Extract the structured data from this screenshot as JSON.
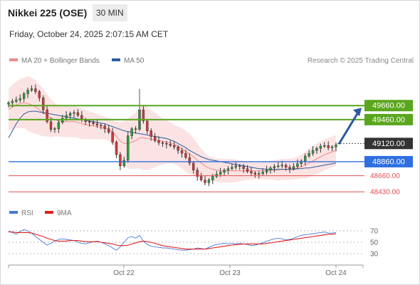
{
  "header": {
    "title": "Nikkei 225 (OSE)",
    "timeframe": "30 MIN",
    "datetime": "Friday, October 24, 2025 2:07:15 AM CET"
  },
  "legend": {
    "items": [
      {
        "label": "MA 20 + Bollinger Bands",
        "color": "#f08a8a"
      },
      {
        "label": "MA 50",
        "color": "#2c5b9e"
      }
    ],
    "credit": "Research © 2025 Trading Central"
  },
  "chart_data": [
    {
      "type": "line",
      "subtype": "candlestick-with-levels",
      "title": "Nikkei 225 (OSE)",
      "y_axis_side": "right",
      "ylim": [
        48300,
        50150
      ],
      "x_ticks": [
        "Oct 22",
        "Oct 23",
        "Oct 24"
      ],
      "levels": [
        {
          "label": "49660.00",
          "value": 49660,
          "color": "#5aa61e",
          "kind": "resistance"
        },
        {
          "label": "49460.00",
          "value": 49460,
          "color": "#5aa61e",
          "kind": "resistance"
        },
        {
          "label": "49120.00",
          "value": 49120,
          "color": "#333333",
          "kind": "last-price"
        },
        {
          "label": "48860.00",
          "value": 48860,
          "color": "#2f6fe0",
          "kind": "pivot"
        },
        {
          "label": "48660.00",
          "value": 48660,
          "color": "#e05050",
          "kind": "support"
        },
        {
          "label": "48430.00",
          "value": 48430,
          "color": "#e05050",
          "kind": "support"
        }
      ],
      "forecast_arrow": {
        "from": 49120,
        "to": 49660,
        "color": "#2c5b9e"
      },
      "price_path": [
        49700,
        49720,
        49740,
        49760,
        49830,
        49880,
        49900,
        49860,
        49770,
        49600,
        49430,
        49320,
        49330,
        49420,
        49480,
        49520,
        49550,
        49560,
        49520,
        49460,
        49430,
        49420,
        49400,
        49380,
        49370,
        49330,
        49280,
        49140,
        48960,
        48800,
        48880,
        49230,
        49330,
        49320,
        49600,
        49440,
        49300,
        49220,
        49160,
        49130,
        49120,
        49110,
        49090,
        49070,
        49020,
        48980,
        48920,
        48840,
        48740,
        48650,
        48600,
        48560,
        48600,
        48650,
        48680,
        48710,
        48740,
        48760,
        48780,
        48800,
        48790,
        48760,
        48720,
        48700,
        48680,
        48690,
        48710,
        48740,
        48770,
        48790,
        48800,
        48810,
        48780,
        48760,
        48790,
        48830,
        48870,
        48940,
        48980,
        49020,
        49050,
        49080,
        49090,
        49060,
        49070,
        49100
      ],
      "series": [
        {
          "name": "MA 20 + Bollinger Bands",
          "color": "#f08a8a",
          "ma": [
            49600,
            49640,
            49670,
            49690,
            49700,
            49690,
            49670,
            49640,
            49600,
            49560,
            49520,
            49480,
            49460,
            49440,
            49430,
            49430,
            49430,
            49430,
            49420,
            49400,
            49390,
            49380,
            49370,
            49360,
            49350,
            49340,
            49320,
            49280,
            49220,
            49150,
            49120,
            49120,
            49140,
            49160,
            49200,
            49200,
            49190,
            49180,
            49170,
            49160,
            49150,
            49140,
            49130,
            49110,
            49080,
            49050,
            49010,
            48970,
            48930,
            48880,
            48840,
            48800,
            48770,
            48750,
            48740,
            48730,
            48730,
            48730,
            48730,
            48730,
            48730,
            48730,
            48730,
            48730,
            48730,
            48730,
            48730,
            48730,
            48740,
            48740,
            48740,
            48750,
            48750,
            48750,
            48760,
            48770,
            48790,
            48810,
            48840,
            48870,
            48900,
            48930,
            48960,
            48980,
            49000,
            49020
          ],
          "upper": [
            49900,
            49960,
            50000,
            50040,
            50060,
            50080,
            50060,
            50020,
            49960,
            49900,
            49820,
            49750,
            49700,
            49660,
            49650,
            49650,
            49650,
            49650,
            49640,
            49620,
            49600,
            49580,
            49560,
            49540,
            49520,
            49500,
            49480,
            49450,
            49430,
            49420,
            49440,
            49480,
            49520,
            49560,
            49640,
            49660,
            49640,
            49600,
            49560,
            49520,
            49480,
            49450,
            49420,
            49390,
            49360,
            49340,
            49300,
            49260,
            49200,
            49120,
            49050,
            48980,
            48940,
            48920,
            48910,
            48900,
            48900,
            48900,
            48900,
            48890,
            48880,
            48870,
            48860,
            48860,
            48850,
            48850,
            48850,
            48860,
            48870,
            48880,
            48890,
            48900,
            48900,
            48900,
            48910,
            48930,
            48960,
            49000,
            49040,
            49080,
            49120,
            49150,
            49180,
            49200,
            49220,
            49240
          ],
          "lower": [
            49300,
            49320,
            49340,
            49340,
            49340,
            49300,
            49280,
            49260,
            49240,
            49220,
            49220,
            49210,
            49220,
            49220,
            49210,
            49210,
            49210,
            49210,
            49200,
            49180,
            49180,
            49180,
            49180,
            49180,
            49180,
            49180,
            49160,
            49110,
            49010,
            48880,
            48800,
            48760,
            48760,
            48760,
            48760,
            48740,
            48740,
            48760,
            48780,
            48800,
            48820,
            48830,
            48840,
            48830,
            48800,
            48760,
            48720,
            48680,
            48660,
            48640,
            48630,
            48620,
            48600,
            48580,
            48570,
            48560,
            48560,
            48560,
            48560,
            48570,
            48580,
            48590,
            48600,
            48600,
            48610,
            48610,
            48610,
            48600,
            48610,
            48600,
            48590,
            48600,
            48600,
            48600,
            48610,
            48610,
            48620,
            48620,
            48640,
            48660,
            48680,
            48710,
            48740,
            48760,
            48780,
            48800
          ]
        },
        {
          "name": "MA 50",
          "color": "#2c5b9e",
          "values": [
            49200,
            49300,
            49400,
            49480,
            49540,
            49570,
            49580,
            49580,
            49570,
            49560,
            49550,
            49540,
            49530,
            49520,
            49510,
            49500,
            49490,
            49480,
            49470,
            49460,
            49450,
            49440,
            49430,
            49420,
            49410,
            49400,
            49380,
            49360,
            49340,
            49320,
            49300,
            49290,
            49280,
            49270,
            49260,
            49250,
            49240,
            49230,
            49220,
            49210,
            49200,
            49190,
            49170,
            49150,
            49120,
            49090,
            49060,
            49020,
            48990,
            48960,
            48930,
            48910,
            48890,
            48880,
            48870,
            48860,
            48850,
            48840,
            48830,
            48820,
            48810,
            48800,
            48790,
            48780,
            48770,
            48760,
            48760,
            48750,
            48750,
            48750,
            48750,
            48750,
            48750,
            48750,
            48750,
            48760,
            48760,
            48770,
            48770,
            48780,
            48790,
            48800,
            48810,
            48820,
            48830,
            48840
          ]
        }
      ]
    },
    {
      "type": "line",
      "title": "",
      "ylim": [
        15,
        85
      ],
      "y_ticks": [
        70,
        50,
        30
      ],
      "x_ticks": [
        "Oct 22",
        "Oct 23",
        "Oct 24"
      ],
      "series": [
        {
          "name": "RSI",
          "color": "#4a78d8",
          "values": [
            70,
            67,
            64,
            69,
            72,
            70,
            66,
            60,
            55,
            50,
            45,
            48,
            52,
            55,
            56,
            55,
            54,
            53,
            50,
            48,
            47,
            49,
            51,
            52,
            50,
            47,
            44,
            40,
            36,
            42,
            50,
            58,
            60,
            57,
            62,
            52,
            46,
            43,
            42,
            41,
            40,
            40,
            39,
            38,
            37,
            36,
            36,
            37,
            38,
            40,
            39,
            38,
            41,
            44,
            46,
            47,
            48,
            47,
            48,
            47,
            48,
            47,
            46,
            44,
            45,
            47,
            49,
            52,
            54,
            56,
            57,
            56,
            54,
            55,
            57,
            60,
            62,
            63,
            64,
            65,
            66,
            67,
            68,
            66,
            66,
            67
          ]
        },
        {
          "name": "9MA",
          "color": "#e02020",
          "values": [
            68,
            68,
            67,
            67,
            67,
            67,
            66,
            64,
            62,
            60,
            57,
            55,
            53,
            52,
            52,
            52,
            53,
            53,
            53,
            52,
            51,
            51,
            51,
            51,
            50,
            49,
            48,
            47,
            45,
            44,
            44,
            45,
            47,
            49,
            51,
            52,
            51,
            50,
            48,
            46,
            44,
            43,
            42,
            41,
            40,
            39,
            38,
            38,
            38,
            38,
            38,
            38,
            39,
            40,
            41,
            42,
            43,
            44,
            45,
            46,
            46,
            47,
            47,
            47,
            47,
            47,
            47,
            48,
            49,
            50,
            51,
            52,
            53,
            54,
            55,
            56,
            57,
            58,
            59,
            60,
            61,
            62,
            63,
            64,
            64,
            65
          ]
        }
      ]
    }
  ]
}
